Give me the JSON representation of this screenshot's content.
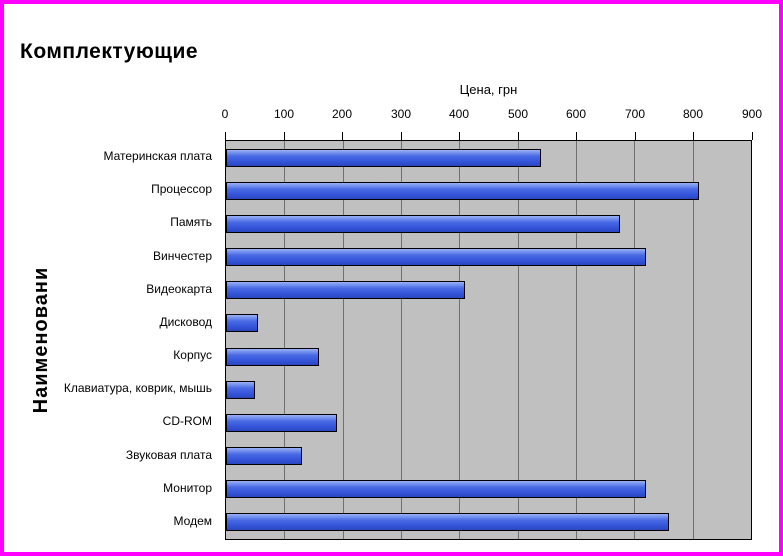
{
  "page": {
    "border_color": "#FF00FF",
    "background": "#FFFFFF"
  },
  "chart_data": {
    "type": "bar",
    "orientation": "horizontal",
    "title": "Комплектующие",
    "value_axis_label": "Цена, грн",
    "category_axis_label": "Наименовани",
    "categories": [
      "Материнская плата",
      "Процессор",
      "Память",
      "Винчестер",
      "Видеокарта",
      "Дисковод",
      "Корпус",
      "Клавиатура, коврик, мышь",
      "CD-ROM",
      "Звуковая плата",
      "Монитор",
      "Модем"
    ],
    "values": [
      540,
      810,
      675,
      720,
      410,
      55,
      160,
      50,
      190,
      130,
      720,
      760
    ],
    "xlim": [
      0,
      900
    ],
    "xticks": [
      0,
      100,
      200,
      300,
      400,
      500,
      600,
      700,
      800,
      900
    ],
    "grid": true,
    "legend": "none",
    "bar_color": "#4169E1",
    "plot_background": "#C0C0C0",
    "gridline_color": "#707070"
  }
}
